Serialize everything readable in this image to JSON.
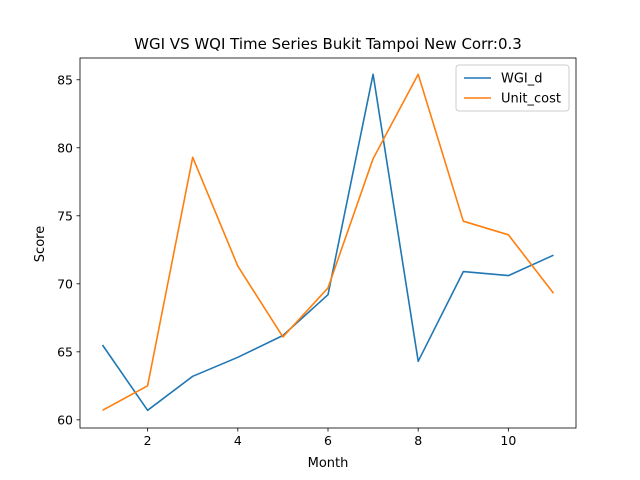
{
  "chart_data": {
    "type": "line",
    "title": "WGI VS WQI Time Series Bukit Tampoi New Corr:0.3",
    "xlabel": "Month",
    "ylabel": "Score",
    "xlim": [
      0.5,
      11.5
    ],
    "ylim": [
      59.4,
      86.6
    ],
    "xticks": [
      2,
      4,
      6,
      8,
      10
    ],
    "yticks": [
      60,
      65,
      70,
      75,
      80,
      85
    ],
    "grid": false,
    "legend_position": "upper right",
    "x": [
      1,
      2,
      3,
      4,
      5,
      6,
      7,
      8,
      9,
      10,
      11
    ],
    "series": [
      {
        "name": "WGI_d",
        "color": "#1f77b4",
        "values": [
          65.5,
          60.7,
          63.2,
          64.6,
          66.2,
          69.2,
          85.4,
          64.3,
          70.9,
          70.6,
          72.1
        ]
      },
      {
        "name": "Unit_cost",
        "color": "#ff7f0e",
        "values": [
          60.7,
          62.5,
          79.3,
          71.3,
          66.1,
          69.7,
          79.2,
          85.4,
          74.6,
          73.6,
          69.3
        ]
      }
    ]
  }
}
